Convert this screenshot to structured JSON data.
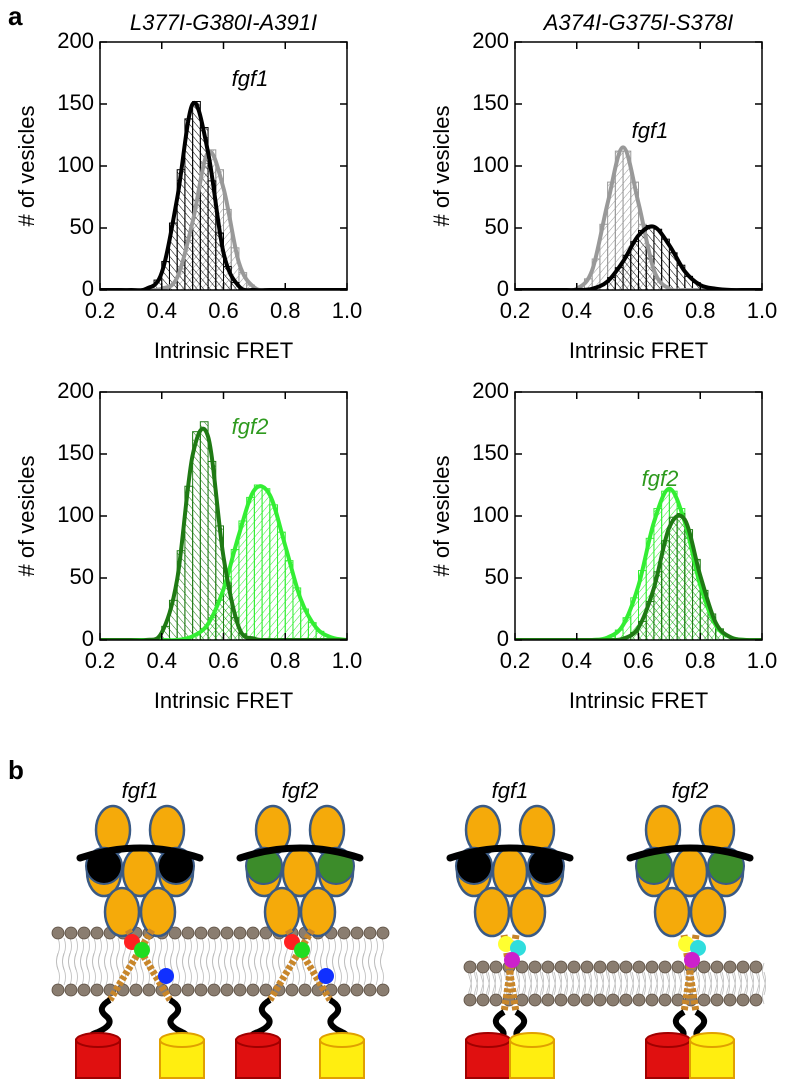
{
  "panel_labels": [
    "a",
    "b"
  ],
  "chart_data": [
    {
      "type": "histogram",
      "title": "L377I-G380I-A391I",
      "annotation": {
        "text": "fgf1",
        "color": "#000000"
      },
      "xlabel": "Intrinsic FRET",
      "ylabel": "# of vesicles",
      "xlim": [
        0.2,
        1.0
      ],
      "ylim": [
        0,
        200
      ],
      "xticks": [
        0.2,
        0.4,
        0.6,
        0.8,
        {
          "value": 1.0,
          "label": "1.0"
        }
      ],
      "yticks": [
        0,
        50,
        100,
        150,
        200
      ],
      "fit_x": [
        0.2,
        0.25,
        0.3,
        0.35,
        0.4,
        0.45,
        0.5,
        0.55,
        0.6,
        0.65,
        0.7,
        0.75,
        0.8,
        0.85,
        0.9,
        0.95,
        1.0
      ],
      "series": [
        {
          "color": "#999999",
          "bins": [
            0.45,
            0.475,
            0.5,
            0.525,
            0.55,
            0.575,
            0.6,
            0.625,
            0.65,
            0.675,
            0.7,
            0.725
          ],
          "values": [
            17,
            40,
            72,
            102,
            113,
            97,
            65,
            34,
            14,
            4,
            1
          ],
          "fit": [
            0,
            0,
            0,
            0,
            1,
            10,
            55,
            111,
            82,
            22,
            2,
            0,
            0,
            0,
            0,
            0,
            0
          ]
        },
        {
          "color": "#000000",
          "bins": [
            0.375,
            0.4,
            0.425,
            0.45,
            0.475,
            0.5,
            0.525,
            0.55,
            0.575,
            0.6,
            0.625,
            0.65
          ],
          "values": [
            8,
            23,
            54,
            97,
            138,
            152,
            131,
            88,
            46,
            19,
            6
          ],
          "fit": [
            0,
            0,
            0,
            1,
            14,
            74,
            150,
            111,
            30,
            3,
            0,
            0,
            0,
            0,
            0,
            0,
            0
          ]
        }
      ]
    },
    {
      "type": "histogram",
      "title": "A374I-G375I-S378I",
      "annotation": {
        "text": "fgf1",
        "color": "#000000"
      },
      "xlabel": "Intrinsic FRET",
      "ylabel": "# of vesicles",
      "xlim": [
        0.2,
        1.0
      ],
      "ylim": [
        0,
        200
      ],
      "xticks": [
        0.2,
        0.4,
        0.6,
        0.8,
        {
          "value": 1.0,
          "label": "1.0"
        }
      ],
      "yticks": [
        0,
        50,
        100,
        150,
        200
      ],
      "fit_x": [
        0.2,
        0.25,
        0.3,
        0.35,
        0.4,
        0.45,
        0.5,
        0.55,
        0.6,
        0.65,
        0.7,
        0.75,
        0.8,
        0.85,
        0.9,
        0.95,
        1.0
      ],
      "series": [
        {
          "color": "#999999",
          "bins": [
            0.425,
            0.45,
            0.475,
            0.5,
            0.525,
            0.55,
            0.575,
            0.6,
            0.625,
            0.65,
            0.675
          ],
          "values": [
            9,
            25,
            53,
            87,
            112,
            112,
            87,
            53,
            25,
            9
          ],
          "fit": [
            0,
            0,
            0,
            0,
            1,
            16,
            70,
            115,
            70,
            16,
            1,
            0,
            0,
            0,
            0,
            0,
            0
          ]
        },
        {
          "color": "#000000",
          "bins": [
            0.5,
            0.525,
            0.55,
            0.575,
            0.6,
            0.625,
            0.65,
            0.675,
            0.7,
            0.725,
            0.75,
            0.775,
            0.8
          ],
          "values": [
            10,
            18,
            28,
            39,
            48,
            52,
            49,
            41,
            30,
            20,
            11,
            6
          ],
          "fit": [
            0,
            0,
            0,
            0,
            0,
            1,
            7,
            23,
            44,
            51,
            36,
            15,
            4,
            1,
            0,
            0,
            0
          ]
        }
      ]
    },
    {
      "type": "histogram",
      "annotation": {
        "text": "fgf2",
        "color": "#2e9a1e"
      },
      "xlabel": "Intrinsic FRET",
      "ylabel": "# of vesicles",
      "xlim": [
        0.2,
        1.0
      ],
      "ylim": [
        0,
        200
      ],
      "xticks": [
        0.2,
        0.4,
        0.6,
        0.8,
        {
          "value": 1.0,
          "label": "1.0"
        }
      ],
      "yticks": [
        0,
        50,
        100,
        150,
        200
      ],
      "fit_x": [
        0.2,
        0.25,
        0.3,
        0.35,
        0.4,
        0.45,
        0.5,
        0.55,
        0.6,
        0.65,
        0.7,
        0.75,
        0.8,
        0.85,
        0.9,
        0.95,
        1.0
      ],
      "series": [
        {
          "color": "#33ee33",
          "bins": [
            0.5,
            0.525,
            0.55,
            0.575,
            0.6,
            0.625,
            0.65,
            0.675,
            0.7,
            0.725,
            0.75,
            0.775,
            0.8,
            0.825,
            0.85,
            0.875,
            0.9,
            0.925
          ],
          "values": [
            4,
            9,
            18,
            32,
            51,
            73,
            96,
            115,
            125,
            122,
            109,
            87,
            64,
            42,
            25,
            14,
            7
          ],
          "fit": [
            0,
            0,
            0,
            0,
            0,
            0,
            3,
            13,
            41,
            85,
            121,
            117,
            76,
            33,
            10,
            2,
            0
          ]
        },
        {
          "color": "#1f7a14",
          "bins": [
            0.4,
            0.425,
            0.45,
            0.475,
            0.5,
            0.525,
            0.55,
            0.575,
            0.6,
            0.625,
            0.65,
            0.675
          ],
          "values": [
            11,
            32,
            72,
            124,
            168,
            176,
            144,
            92,
            46,
            18,
            5
          ],
          "fit": [
            0,
            0,
            0,
            0,
            6,
            49,
            149,
            164,
            67,
            10,
            1,
            0,
            0,
            0,
            0,
            0,
            0
          ]
        }
      ]
    },
    {
      "type": "histogram",
      "annotation": {
        "text": "fgf2",
        "color": "#2e9a1e"
      },
      "xlabel": "Intrinsic FRET",
      "ylabel": "# of vesicles",
      "xlim": [
        0.2,
        1.0
      ],
      "ylim": [
        0,
        200
      ],
      "xticks": [
        0.2,
        0.4,
        0.6,
        0.8,
        {
          "value": 1.0,
          "label": "1.0"
        }
      ],
      "yticks": [
        0,
        50,
        100,
        150,
        200
      ],
      "fit_x": [
        0.2,
        0.25,
        0.3,
        0.35,
        0.4,
        0.45,
        0.5,
        0.55,
        0.6,
        0.65,
        0.7,
        0.75,
        0.8,
        0.85,
        0.9,
        0.95,
        1.0
      ],
      "series": [
        {
          "color": "#33ee33",
          "bins": [
            0.5,
            0.525,
            0.55,
            0.575,
            0.6,
            0.625,
            0.65,
            0.675,
            0.7,
            0.725,
            0.75,
            0.775,
            0.8,
            0.825,
            0.85,
            0.875,
            0.9
          ],
          "values": [
            3,
            8,
            18,
            34,
            56,
            82,
            106,
            120,
            120,
            106,
            82,
            56,
            34,
            18,
            8,
            3
          ],
          "fit": [
            0,
            0,
            0,
            0,
            0,
            0,
            2,
            12,
            44,
            95,
            122,
            95,
            44,
            12,
            2,
            0,
            0
          ]
        },
        {
          "color": "#1f7a14",
          "bins": [
            0.575,
            0.6,
            0.625,
            0.65,
            0.675,
            0.7,
            0.725,
            0.75,
            0.775,
            0.8,
            0.825,
            0.85,
            0.875
          ],
          "values": [
            6,
            15,
            31,
            55,
            80,
            99,
            102,
            89,
            65,
            40,
            21,
            9
          ],
          "fit": [
            0,
            0,
            0,
            0,
            0,
            0,
            0,
            1,
            10,
            42,
            91,
            97,
            52,
            14,
            2,
            0,
            0
          ]
        }
      ]
    }
  ],
  "diagram": {
    "labels": [
      "fgf1",
      "fgf2",
      "fgf1",
      "fgf2"
    ]
  }
}
